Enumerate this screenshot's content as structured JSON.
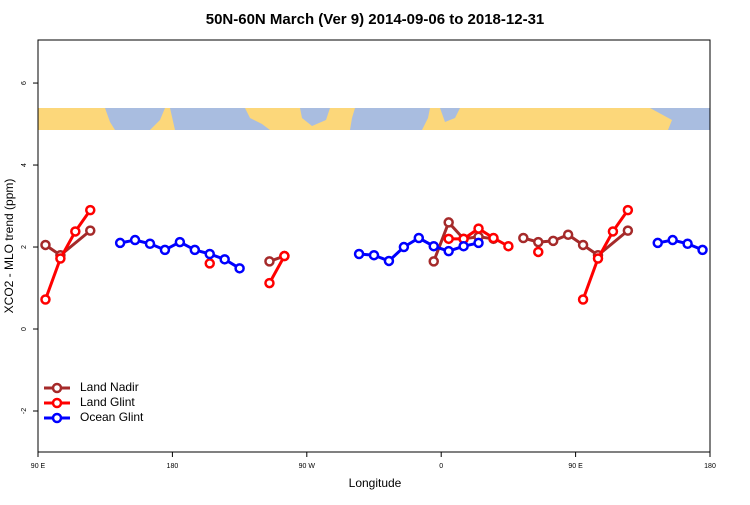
{
  "chart_data": {
    "type": "line",
    "title": "50N-60N March (Ver 9)   2014-09-06 to 2018-12-31",
    "x_label": "Longitude",
    "y_label": "XCO2 - MLO trend (ppm)",
    "xlim": [
      90,
      540
    ],
    "ylim": [
      -3,
      7.05
    ],
    "xticks": [
      {
        "value": 90,
        "label": "90 E"
      },
      {
        "value": 180,
        "label": "180"
      },
      {
        "value": 270,
        "label": "90 W"
      },
      {
        "value": 360,
        "label": "0"
      },
      {
        "value": 450,
        "label": "90 E"
      },
      {
        "value": 540,
        "label": "180"
      }
    ],
    "yticks": [
      -2,
      0,
      2,
      4,
      6
    ],
    "legend": "bottom-left",
    "series": [
      {
        "name": "Land Nadir",
        "color": "#a52a2a",
        "x": [
          95,
          105,
          125,
          null,
          245,
          255,
          null,
          355,
          365,
          375,
          385,
          395,
          null,
          415,
          425,
          435,
          445,
          455,
          465,
          485
        ],
        "values": [
          2.05,
          1.8,
          2.4,
          null,
          1.65,
          1.78,
          null,
          1.65,
          2.6,
          2.2,
          2.25,
          2.2,
          null,
          2.22,
          2.12,
          2.15,
          2.3,
          2.05,
          1.8,
          2.4
        ]
      },
      {
        "name": "Land Glint",
        "color": "#ff0000",
        "x": [
          95,
          105,
          115,
          125,
          null,
          205,
          null,
          245,
          255,
          null,
          365,
          375,
          385,
          395,
          405,
          null,
          425,
          null,
          455,
          465,
          475,
          485
        ],
        "values": [
          0.72,
          1.72,
          2.38,
          2.9,
          null,
          1.6,
          null,
          1.12,
          1.78,
          null,
          2.2,
          2.2,
          2.45,
          2.22,
          2.02,
          null,
          1.88,
          null,
          0.72,
          1.72,
          2.38,
          2.9
        ]
      },
      {
        "name": "Ocean Glint",
        "color": "#0000ff",
        "x": [
          145,
          155,
          165,
          175,
          185,
          195,
          205,
          215,
          225,
          null,
          305,
          315,
          325,
          335,
          345,
          355,
          365,
          375,
          385,
          null,
          505,
          515,
          525,
          535
        ],
        "values": [
          2.1,
          2.17,
          2.08,
          1.93,
          2.12,
          1.93,
          1.83,
          1.7,
          1.48,
          null,
          1.83,
          1.8,
          1.66,
          2.0,
          2.22,
          2.02,
          1.9,
          2.02,
          2.1,
          null,
          2.1,
          2.17,
          2.08,
          1.93
        ]
      }
    ]
  }
}
